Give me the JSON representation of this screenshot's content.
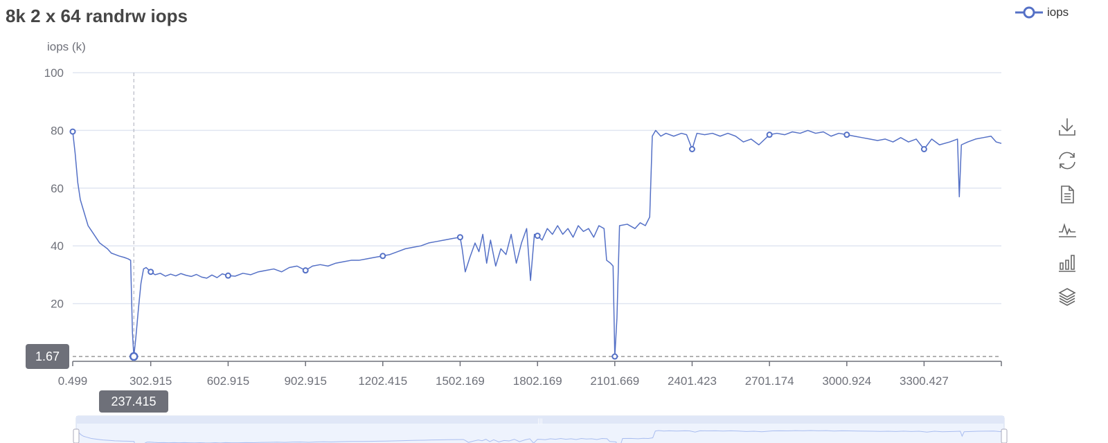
{
  "chart_data": {
    "type": "line",
    "title": "8k 2 x 64 randrw iops",
    "ylabel": "iops (k)",
    "xlabel": "",
    "ylim": [
      0,
      100
    ],
    "yticks": [
      20,
      40,
      60,
      80,
      100
    ],
    "xlim": [
      0.499,
      3600
    ],
    "xtick_labels": [
      "0.499",
      "302.915",
      "602.915",
      "902.915",
      "1202.415",
      "1502.169",
      "1802.169",
      "2101.669",
      "2401.423",
      "2701.174",
      "3000.924",
      "3300.427"
    ],
    "grid": true,
    "legend_position": "top-right",
    "color": "#5470c6",
    "series": [
      {
        "name": "iops",
        "points": [
          [
            0.5,
            79.6
          ],
          [
            10,
            72
          ],
          [
            20,
            62
          ],
          [
            30,
            56
          ],
          [
            40,
            53
          ],
          [
            50,
            50
          ],
          [
            60,
            47
          ],
          [
            75,
            45
          ],
          [
            90,
            43
          ],
          [
            105,
            41
          ],
          [
            120,
            40
          ],
          [
            135,
            39
          ],
          [
            150,
            37.5
          ],
          [
            165,
            37
          ],
          [
            180,
            36.5
          ],
          [
            200,
            36
          ],
          [
            215,
            35.5
          ],
          [
            225,
            35
          ],
          [
            232,
            10
          ],
          [
            237.415,
            1.67
          ],
          [
            245,
            8
          ],
          [
            255,
            18
          ],
          [
            265,
            27
          ],
          [
            275,
            32
          ],
          [
            285,
            32.5
          ],
          [
            302.915,
            31
          ],
          [
            320,
            30
          ],
          [
            340,
            30.5
          ],
          [
            360,
            29.5
          ],
          [
            380,
            30.2
          ],
          [
            400,
            29.6
          ],
          [
            420,
            30.4
          ],
          [
            440,
            29.8
          ],
          [
            460,
            29.4
          ],
          [
            480,
            30.1
          ],
          [
            500,
            29.2
          ],
          [
            520,
            28.8
          ],
          [
            540,
            29.9
          ],
          [
            560,
            29
          ],
          [
            580,
            30.3
          ],
          [
            602.915,
            29.7
          ],
          [
            630,
            29.5
          ],
          [
            660,
            30.5
          ],
          [
            690,
            30
          ],
          [
            720,
            31
          ],
          [
            750,
            31.5
          ],
          [
            780,
            32
          ],
          [
            810,
            31
          ],
          [
            840,
            32.5
          ],
          [
            870,
            33
          ],
          [
            902.915,
            31.5
          ],
          [
            930,
            33
          ],
          [
            960,
            33.5
          ],
          [
            990,
            33
          ],
          [
            1020,
            34
          ],
          [
            1050,
            34.5
          ],
          [
            1080,
            35
          ],
          [
            1110,
            35
          ],
          [
            1140,
            35.5
          ],
          [
            1170,
            36
          ],
          [
            1202.415,
            36.5
          ],
          [
            1230,
            37
          ],
          [
            1260,
            38
          ],
          [
            1290,
            39
          ],
          [
            1320,
            39.5
          ],
          [
            1350,
            40
          ],
          [
            1380,
            41
          ],
          [
            1410,
            41.5
          ],
          [
            1440,
            42
          ],
          [
            1470,
            42.5
          ],
          [
            1502.169,
            43
          ],
          [
            1510,
            39
          ],
          [
            1522,
            31
          ],
          [
            1540,
            36
          ],
          [
            1560,
            41
          ],
          [
            1575,
            38
          ],
          [
            1590,
            44
          ],
          [
            1605,
            34
          ],
          [
            1620,
            42
          ],
          [
            1640,
            33
          ],
          [
            1660,
            39
          ],
          [
            1680,
            37
          ],
          [
            1700,
            44
          ],
          [
            1720,
            34
          ],
          [
            1740,
            41
          ],
          [
            1760,
            46
          ],
          [
            1775,
            28
          ],
          [
            1790,
            44
          ],
          [
            1802.169,
            43.5
          ],
          [
            1820,
            42
          ],
          [
            1840,
            46
          ],
          [
            1860,
            44
          ],
          [
            1880,
            47
          ],
          [
            1900,
            44
          ],
          [
            1920,
            46
          ],
          [
            1940,
            43
          ],
          [
            1960,
            47
          ],
          [
            1980,
            45
          ],
          [
            2000,
            46
          ],
          [
            2020,
            43
          ],
          [
            2040,
            47
          ],
          [
            2060,
            46
          ],
          [
            2070,
            35
          ],
          [
            2085,
            34
          ],
          [
            2095,
            33
          ],
          [
            2101.669,
            1.67
          ],
          [
            2110,
            15
          ],
          [
            2120,
            47
          ],
          [
            2150,
            47.5
          ],
          [
            2180,
            46
          ],
          [
            2200,
            48
          ],
          [
            2220,
            47
          ],
          [
            2237,
            50
          ],
          [
            2247,
            78
          ],
          [
            2260,
            80
          ],
          [
            2280,
            78
          ],
          [
            2300,
            79
          ],
          [
            2330,
            78
          ],
          [
            2360,
            79
          ],
          [
            2380,
            78.5
          ],
          [
            2401.423,
            73.5
          ],
          [
            2420,
            79
          ],
          [
            2450,
            78.5
          ],
          [
            2480,
            79
          ],
          [
            2510,
            78
          ],
          [
            2540,
            79
          ],
          [
            2570,
            78
          ],
          [
            2600,
            76
          ],
          [
            2630,
            77
          ],
          [
            2660,
            75
          ],
          [
            2701.174,
            78.5
          ],
          [
            2730,
            79
          ],
          [
            2760,
            78.5
          ],
          [
            2790,
            79.5
          ],
          [
            2820,
            79
          ],
          [
            2850,
            80
          ],
          [
            2880,
            79
          ],
          [
            2910,
            79.5
          ],
          [
            2940,
            78
          ],
          [
            2970,
            79
          ],
          [
            3000.924,
            78.5
          ],
          [
            3030,
            78
          ],
          [
            3060,
            77.5
          ],
          [
            3090,
            77
          ],
          [
            3120,
            76.5
          ],
          [
            3150,
            77
          ],
          [
            3180,
            76
          ],
          [
            3210,
            77.5
          ],
          [
            3240,
            76
          ],
          [
            3270,
            77
          ],
          [
            3300.427,
            73.5
          ],
          [
            3330,
            77
          ],
          [
            3360,
            75
          ],
          [
            3400,
            76
          ],
          [
            3430,
            77
          ],
          [
            3437,
            57
          ],
          [
            3445,
            75
          ],
          [
            3470,
            76
          ],
          [
            3500,
            77
          ],
          [
            3530,
            77.5
          ],
          [
            3560,
            78
          ],
          [
            3580,
            76
          ],
          [
            3600,
            75.5
          ]
        ]
      }
    ],
    "axis_pointer": {
      "x": "237.415",
      "y": "1.67"
    }
  },
  "legend": {
    "label": "iops"
  },
  "toolbox": [
    "download-icon",
    "restore-icon",
    "data-view-icon",
    "line-chart-icon",
    "bar-chart-icon",
    "stack-icon"
  ]
}
